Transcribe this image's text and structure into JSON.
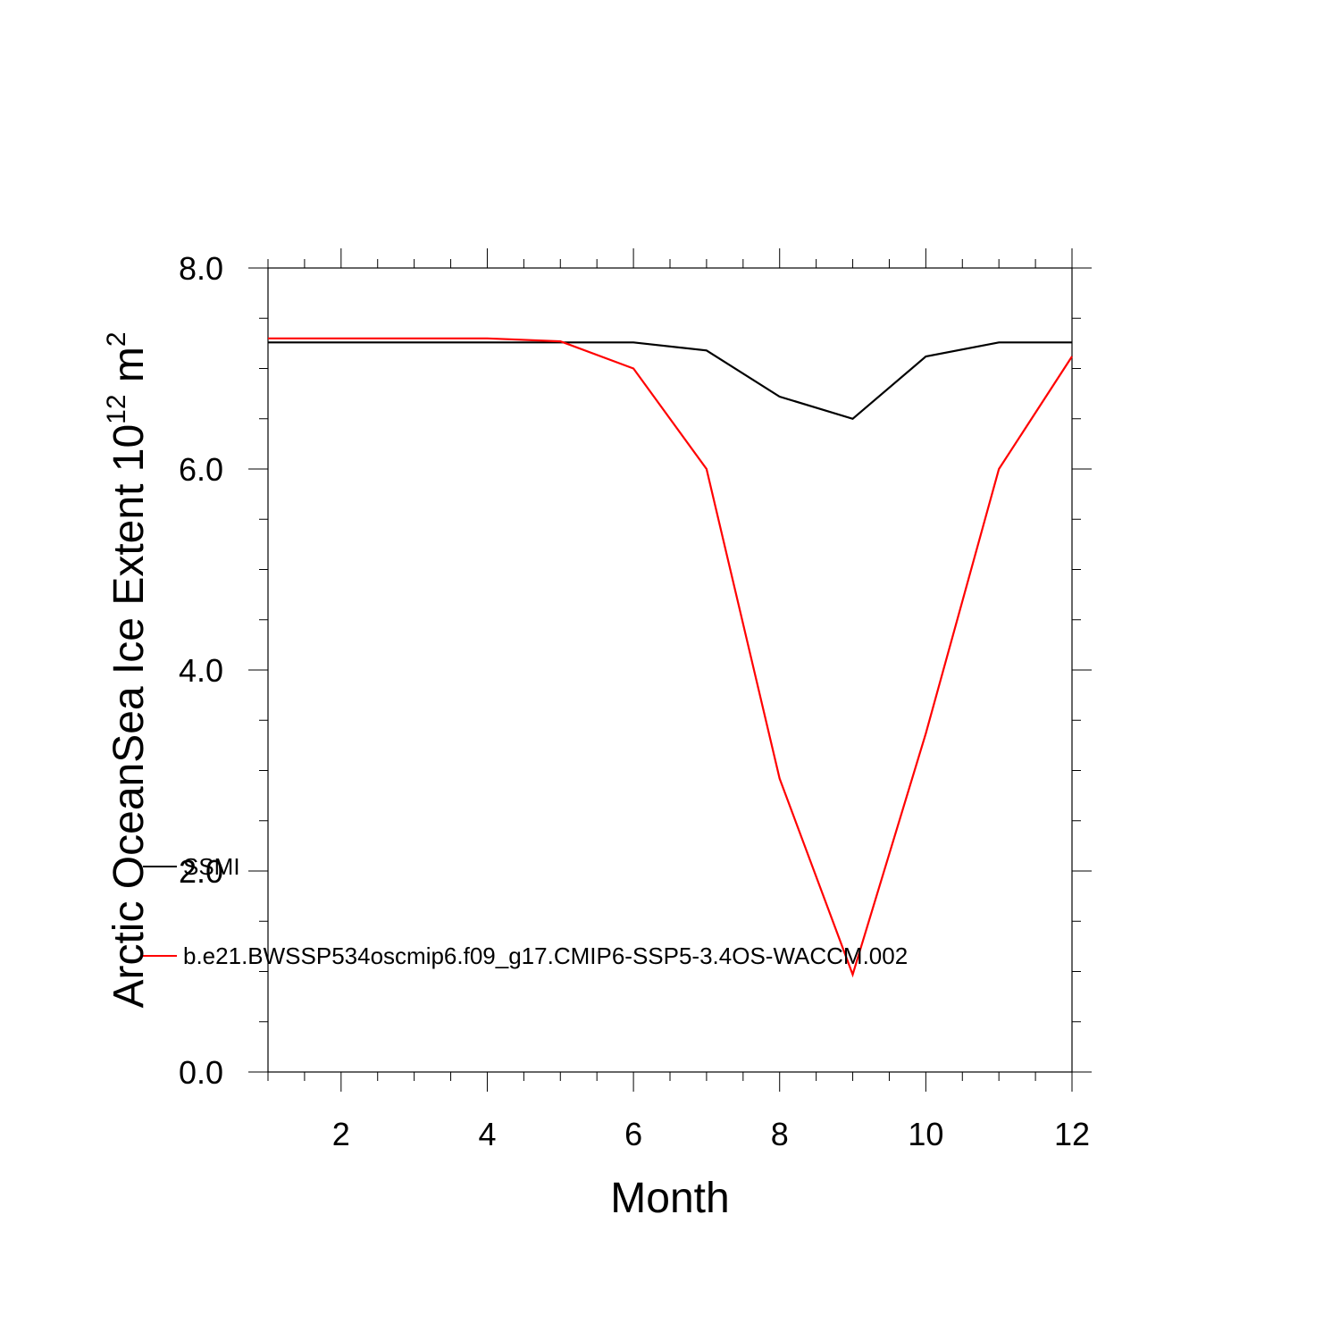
{
  "chart_data": {
    "type": "line",
    "xlabel": "Month",
    "ylabel_main": "Arctic OceanSea Ice Extent 10",
    "ylabel_exponent_base_sup": "12",
    "ylabel_unit": " m",
    "ylabel_unit_sup": "2",
    "xlim": [
      1,
      12
    ],
    "ylim": [
      0,
      8
    ],
    "x_ticks": [
      2,
      4,
      6,
      8,
      10,
      12
    ],
    "x_tick_labels": [
      "2",
      "4",
      "6",
      "8",
      "10",
      "12"
    ],
    "y_ticks": [
      0,
      2,
      4,
      6,
      8
    ],
    "y_tick_labels": [
      "0.0",
      "2.0",
      "4.0",
      "6.0",
      "8.0"
    ],
    "grid": false,
    "legend_placement": "left",
    "x": [
      1,
      2,
      3,
      4,
      5,
      6,
      7,
      8,
      9,
      10,
      11,
      12
    ],
    "series": [
      {
        "name": "SSMI",
        "color": "#000000",
        "values": [
          7.26,
          7.26,
          7.26,
          7.26,
          7.26,
          7.26,
          7.18,
          6.72,
          6.5,
          7.12,
          7.26,
          7.26
        ]
      },
      {
        "name": "b.e21.BWSSP534oscmip6.f09_g17.CMIP6-SSP5-3.4OS-WACCM.002",
        "color": "#ff0000",
        "values": [
          7.3,
          7.3,
          7.3,
          7.3,
          7.27,
          7.0,
          6.0,
          2.92,
          0.97,
          3.37,
          6.0,
          7.12
        ]
      }
    ]
  }
}
